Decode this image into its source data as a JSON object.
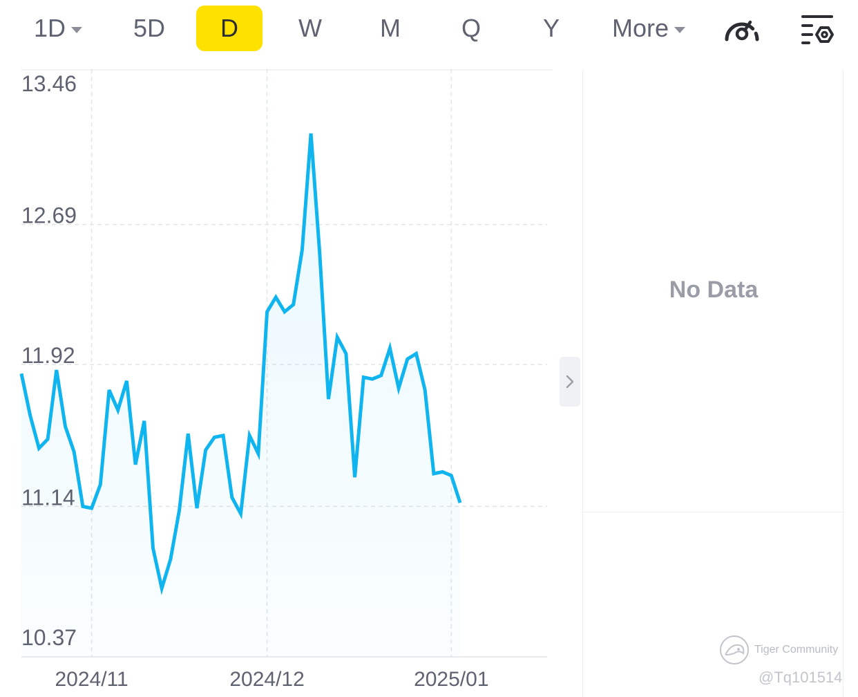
{
  "toolbar": {
    "tabs": [
      {
        "label": "1D",
        "dropdown": true
      },
      {
        "label": "5D",
        "dropdown": false
      },
      {
        "label": "D",
        "dropdown": false,
        "active": true
      },
      {
        "label": "W",
        "dropdown": false
      },
      {
        "label": "M",
        "dropdown": false
      },
      {
        "label": "Q",
        "dropdown": false
      },
      {
        "label": "Y",
        "dropdown": false
      },
      {
        "label": "More",
        "dropdown": true
      }
    ],
    "tools": [
      {
        "icon": "speedometer-icon"
      },
      {
        "icon": "settings-filter-icon"
      }
    ],
    "active_color": "#ffe100"
  },
  "side_panel": {
    "no_data_label": "No Data",
    "collapse_icon": "chevron-right-icon"
  },
  "watermark": {
    "brand": "Tiger Community",
    "user": "@Tq101514"
  },
  "chart_data": {
    "type": "area",
    "title": "",
    "xlabel": "",
    "ylabel": "",
    "line_color": "#10b4ee",
    "ylim": [
      10.37,
      13.46
    ],
    "yticks": [
      "13.46",
      "12.69",
      "11.92",
      "11.14",
      "10.37"
    ],
    "xticks": [
      {
        "label": "2024/11",
        "index": 8
      },
      {
        "label": "2024/12",
        "index": 28
      },
      {
        "label": "2025/01",
        "index": 49
      }
    ],
    "grid": true,
    "values": [
      11.87,
      11.64,
      11.46,
      11.51,
      11.89,
      11.58,
      11.44,
      11.14,
      11.13,
      11.26,
      11.78,
      11.67,
      11.83,
      11.37,
      11.61,
      10.91,
      10.69,
      10.85,
      11.12,
      11.54,
      11.13,
      11.45,
      11.52,
      11.53,
      11.19,
      11.1,
      11.53,
      11.43,
      12.21,
      12.29,
      12.21,
      12.25,
      12.55,
      13.19,
      12.53,
      11.73,
      12.07,
      11.98,
      11.3,
      11.85,
      11.84,
      11.86,
      12.01,
      11.79,
      11.95,
      11.98,
      11.78,
      11.32,
      11.33,
      11.31,
      11.16
    ]
  }
}
